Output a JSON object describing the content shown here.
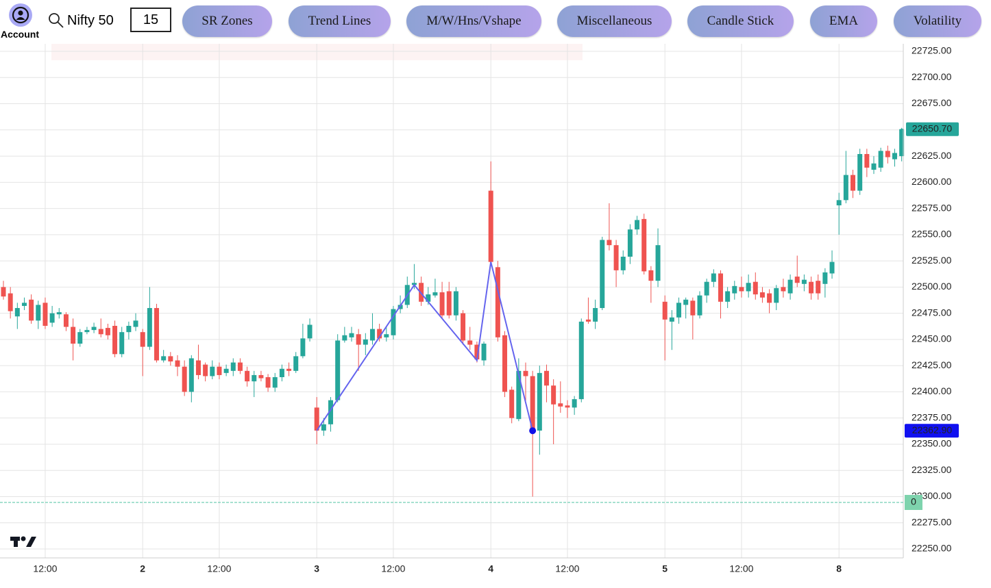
{
  "toolbar": {
    "account_label": "Account",
    "symbol": "Nifty 50",
    "interval": 15,
    "buttons": [
      "SR Zones",
      "Trend Lines",
      "M/W/Hns/Vshape",
      "Miscellaneous",
      "Candle Stick",
      "EMA",
      "Volatility"
    ]
  },
  "chart_data": {
    "type": "candlestick",
    "categories": [
      null,
      null,
      null,
      null,
      null,
      null,
      "12:00",
      null,
      null,
      null,
      null,
      null,
      null,
      null,
      null,
      null,
      null,
      null,
      null,
      null,
      "2",
      null,
      null,
      null,
      null,
      null,
      null,
      null,
      null,
      null,
      null,
      "12:00",
      null,
      null,
      null,
      null,
      null,
      null,
      null,
      null,
      null,
      null,
      null,
      null,
      null,
      "3",
      null,
      null,
      null,
      null,
      null,
      null,
      null,
      null,
      null,
      null,
      "12:00",
      null,
      null,
      null,
      null,
      null,
      null,
      null,
      null,
      null,
      null,
      null,
      null,
      null,
      "4",
      null,
      null,
      null,
      null,
      null,
      null,
      null,
      null,
      null,
      null,
      "12:00",
      null,
      null,
      null,
      null,
      null,
      null,
      null,
      null,
      null,
      null,
      null,
      null,
      null,
      "5",
      null,
      null,
      null,
      null,
      null,
      null,
      null,
      null,
      null,
      null,
      "12:00",
      null,
      null,
      null,
      null,
      null,
      null,
      null,
      null,
      null,
      null,
      null,
      null,
      null,
      "8",
      null,
      null,
      null,
      null,
      null,
      null,
      null,
      null,
      null
    ],
    "open": [
      22500,
      22494,
      22472,
      22482,
      22488,
      22468,
      22485,
      22466,
      22474,
      22474,
      22462,
      22446,
      22457,
      22459,
      22460,
      22461,
      22463,
      22436,
      22457,
      22462,
      22457,
      22443,
      22480,
      22430,
      22434,
      22430,
      22424,
      22400,
      22430,
      22426,
      22415,
      22424,
      22418,
      22420,
      22428,
      22420,
      22410,
      22416,
      22414,
      22404,
      22414,
      22422,
      22420,
      22434,
      22451,
      22385,
      22363,
      22369,
      22392,
      22449,
      22452,
      22455,
      22445,
      22449,
      22460,
      22452,
      22454,
      22479,
      22483,
      22502,
      22504,
      22486,
      22492,
      22495,
      22496,
      22473,
      22475,
      22449,
      22445,
      22430,
      22592,
      22519,
      22454,
      22402,
      22374,
      22420,
      22415,
      22363,
      22420,
      22406,
      22389,
      22387,
      22385,
      22393,
      22469,
      22467,
      22480,
      22545,
      22540,
      22516,
      22529,
      22555,
      22565,
      22516,
      22506,
      22486,
      22467,
      22471,
      22483,
      22487,
      22473,
      22492,
      22505,
      22513,
      22486,
      22494,
      22500,
      22496,
      22505,
      22495,
      22494,
      22485,
      22500,
      22494,
      22510,
      22503,
      22505,
      22506,
      22503,
      22513,
      22578,
      22583,
      22607,
      22592,
      22627,
      22612,
      22614,
      22630,
      22622,
      22625
    ],
    "high": [
      22506,
      22500,
      22485,
      22490,
      22493,
      22487,
      22490,
      22482,
      22480,
      22476,
      22470,
      22460,
      22462,
      22466,
      22470,
      22465,
      22468,
      22462,
      22467,
      22475,
      22460,
      22500,
      22484,
      22440,
      22438,
      22435,
      22430,
      22435,
      22445,
      22428,
      22430,
      22428,
      22426,
      22432,
      22432,
      22424,
      22420,
      22420,
      22417,
      22418,
      22426,
      22428,
      22438,
      22465,
      22470,
      22395,
      22375,
      22395,
      22455,
      22462,
      22462,
      22460,
      22456,
      22475,
      22465,
      22462,
      22482,
      22492,
      22510,
      22522,
      22510,
      22500,
      22508,
      22505,
      22505,
      22500,
      22478,
      22462,
      22448,
      22448,
      22620,
      22525,
      22458,
      22405,
      22432,
      22428,
      22420,
      22425,
      22426,
      22412,
      22410,
      22392,
      22396,
      22470,
      22490,
      22488,
      22548,
      22580,
      22545,
      22535,
      22560,
      22568,
      22570,
      22520,
      22556,
      22492,
      22478,
      22490,
      22490,
      22490,
      22496,
      22508,
      22517,
      22516,
      22500,
      22506,
      22510,
      22512,
      22514,
      22500,
      22498,
      22502,
      22508,
      22512,
      22530,
      22512,
      22510,
      22512,
      22518,
      22535,
      22590,
      22630,
      22612,
      22632,
      22632,
      22625,
      22633,
      22635,
      22632,
      22652
    ],
    "low": [
      22488,
      22470,
      22460,
      22478,
      22465,
      22460,
      22460,
      22462,
      22470,
      22458,
      22430,
      22443,
      22455,
      22456,
      22452,
      22450,
      22433,
      22433,
      22450,
      22458,
      22415,
      22440,
      22428,
      22428,
      22425,
      22415,
      22396,
      22390,
      22412,
      22410,
      22412,
      22412,
      22415,
      22415,
      22417,
      22405,
      22395,
      22410,
      22400,
      22400,
      22410,
      22415,
      22418,
      22432,
      22448,
      22350,
      22358,
      22362,
      22390,
      22447,
      22448,
      22420,
      22435,
      22445,
      22448,
      22448,
      22450,
      22475,
      22480,
      22498,
      22482,
      22483,
      22490,
      22470,
      22470,
      22468,
      22445,
      22440,
      22428,
      22425,
      22520,
      22448,
      22395,
      22370,
      22372,
      22390,
      22300,
      22340,
      22390,
      22350,
      22380,
      22375,
      22378,
      22390,
      22465,
      22460,
      22478,
      22535,
      22500,
      22512,
      22522,
      22550,
      22512,
      22485,
      22500,
      22430,
      22440,
      22465,
      22470,
      22450,
      22470,
      22485,
      22500,
      22470,
      22480,
      22488,
      22490,
      22490,
      22488,
      22485,
      22475,
      22478,
      22490,
      22488,
      22500,
      22496,
      22488,
      22488,
      22490,
      22508,
      22550,
      22580,
      22585,
      22588,
      22605,
      22608,
      22610,
      22618,
      22615,
      22620
    ],
    "close": [
      22491,
      22477,
      22480,
      22485,
      22468,
      22483,
      22463,
      22475,
      22476,
      22462,
      22446,
      22457,
      22459,
      22462,
      22455,
      22454,
      22436,
      22457,
      22463,
      22468,
      22443,
      22480,
      22430,
      22434,
      22429,
      22424,
      22400,
      22432,
      22416,
      22415,
      22424,
      22416,
      22422,
      22428,
      22420,
      22410,
      22416,
      22413,
      22404,
      22414,
      22422,
      22420,
      22434,
      22451,
      22464,
      22363,
      22369,
      22392,
      22449,
      22454,
      22456,
      22445,
      22450,
      22460,
      22451,
      22455,
      22479,
      22483,
      22502,
      22504,
      22486,
      22493,
      22495,
      22473,
      22473,
      22496,
      22449,
      22445,
      22431,
      22446,
      22524,
      22452,
      22400,
      22375,
      22420,
      22415,
      22364,
      22418,
      22406,
      22388,
      22386,
      22385,
      22393,
      22467,
      22467,
      22480,
      22545,
      22540,
      22516,
      22529,
      22555,
      22564,
      22515,
      22506,
      22540,
      22469,
      22471,
      22485,
      22488,
      22473,
      22492,
      22505,
      22513,
      22486,
      22496,
      22501,
      22496,
      22504,
      22493,
      22490,
      22485,
      22499,
      22496,
      22507,
      22504,
      22507,
      22494,
      22494,
      22514,
      22524,
      22583,
      22607,
      22592,
      22627,
      22614,
      22618,
      22630,
      22624,
      22628,
      22650.7
    ],
    "up_color": "#26a69a",
    "down_color": "#ef5350",
    "ylim": [
      22241.5,
      22732.2
    ],
    "yticks": [
      {
        "value": 22725,
        "label": "22725.00"
      },
      {
        "value": 22700,
        "label": "22700.00"
      },
      {
        "value": 22675,
        "label": "22675.00"
      },
      {
        "value": 22650,
        "label": "22650.00"
      },
      {
        "value": 22625,
        "label": "22625.00"
      },
      {
        "value": 22600,
        "label": "22600.00"
      },
      {
        "value": 22575,
        "label": "22575.00"
      },
      {
        "value": 22550,
        "label": "22550.00"
      },
      {
        "value": 22525,
        "label": "22525.00"
      },
      {
        "value": 22500,
        "label": "22500.00"
      },
      {
        "value": 22475,
        "label": "22475.00"
      },
      {
        "value": 22450,
        "label": "22450.00"
      },
      {
        "value": 22425,
        "label": "22425.00"
      },
      {
        "value": 22400,
        "label": "22400.00"
      },
      {
        "value": 22375,
        "label": "22375.00"
      },
      {
        "value": 22350,
        "label": "22350.00"
      },
      {
        "value": 22325,
        "label": "22325.00"
      },
      {
        "value": 22300,
        "label": "22300.00"
      },
      {
        "value": 22275,
        "label": "22275.00"
      },
      {
        "value": 22250,
        "label": "22250.00"
      }
    ],
    "grid": true,
    "last_price": {
      "value": 22650.7,
      "label": "22650.70"
    },
    "cursor_price": {
      "value": 22362.9,
      "label": "22362.90"
    },
    "pattern_line": {
      "color": "#6464ee",
      "x": [
        45,
        59,
        68,
        70,
        76
      ],
      "values": [
        22363,
        22502,
        22430,
        22524,
        22362.9
      ]
    },
    "indicator": {
      "value": 0,
      "color": "#4fc3a1"
    }
  }
}
